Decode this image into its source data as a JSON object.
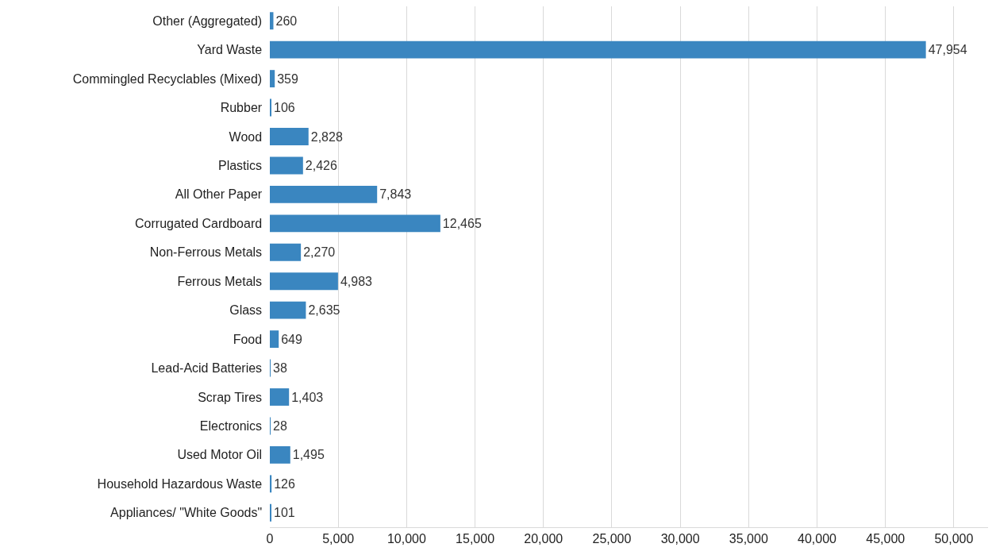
{
  "chart_data": {
    "type": "bar",
    "orientation": "horizontal",
    "categories": [
      "Other (Aggregated)",
      "Yard Waste",
      "Commingled Recyclables (Mixed)",
      "Rubber",
      "Wood",
      "Plastics",
      "All Other Paper",
      "Corrugated Cardboard",
      "Non-Ferrous Metals",
      "Ferrous Metals",
      "Glass",
      "Food",
      "Lead-Acid Batteries",
      "Scrap Tires",
      "Electronics",
      "Used Motor Oil",
      "Household Hazardous Waste",
      "Appliances/ \"White Goods\""
    ],
    "values": [
      260,
      47954,
      359,
      106,
      2828,
      2426,
      7843,
      12465,
      2270,
      4983,
      2635,
      649,
      38,
      1403,
      28,
      1495,
      126,
      101
    ],
    "value_labels": [
      "260",
      "47,954",
      "359",
      "106",
      "2,828",
      "2,426",
      "7,843",
      "12,465",
      "2,270",
      "4,983",
      "2,635",
      "649",
      "38",
      "1,403",
      "28",
      "1,495",
      "126",
      "101"
    ],
    "color": "#3a86c0",
    "xlim": [
      0,
      52500
    ],
    "xticks": [
      {
        "value": 0,
        "label": "0"
      },
      {
        "value": 5000,
        "label": "5,000"
      },
      {
        "value": 10000,
        "label": "10,000"
      },
      {
        "value": 15000,
        "label": "15,000"
      },
      {
        "value": 20000,
        "label": "20,000"
      },
      {
        "value": 25000,
        "label": "25,000"
      },
      {
        "value": 30000,
        "label": "30,000"
      },
      {
        "value": 35000,
        "label": "35,000"
      },
      {
        "value": 40000,
        "label": "40,000"
      },
      {
        "value": 45000,
        "label": "45,000"
      },
      {
        "value": 50000,
        "label": "50,000"
      }
    ],
    "grid": "x"
  }
}
